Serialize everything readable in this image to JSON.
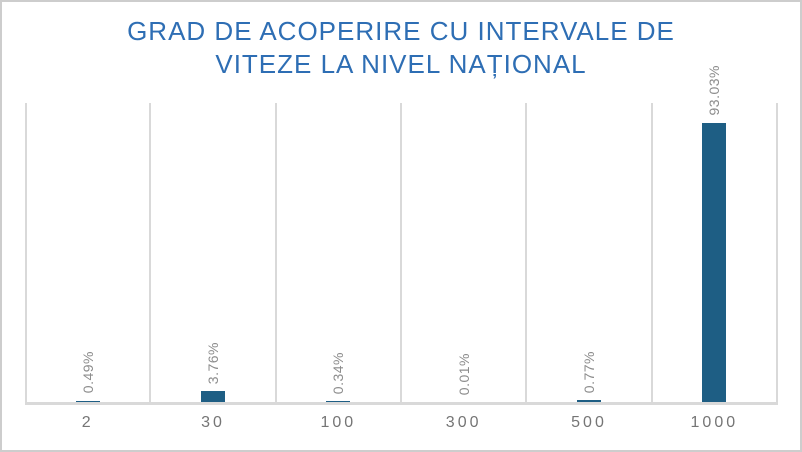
{
  "window": {
    "background_color": "#FFFFFF",
    "border_color": "#CDCDCD"
  },
  "chart_data": {
    "type": "bar",
    "title": "GRAD DE ACOPERIRE CU INTERVALE DE VITEZE LA NIVEL NAȚIONAL",
    "title_lines": [
      "GRAD DE ACOPERIRE CU INTERVALE DE",
      "VITEZE LA NIVEL NAȚIONAL"
    ],
    "categories": [
      "2",
      "30",
      "100",
      "300",
      "500",
      "1000"
    ],
    "values": [
      0.49,
      3.76,
      0.34,
      0.01,
      0.77,
      93.03
    ],
    "data_labels": [
      "0.49%",
      "3.76%",
      "0.34%",
      "0.01%",
      "0.77%",
      "93.03%"
    ],
    "data_label_rotation": "vertical-bottom-to-top",
    "xlabel": "",
    "ylabel": "",
    "ylim": [
      0,
      100
    ],
    "y_axis_visible": false,
    "legend": "none",
    "grid": "vertical category separators only",
    "colors": {
      "bar": "#1E5E84",
      "title": "#2E6EB4",
      "data_label": "#8C8C8C",
      "axis_tick_label": "#757575",
      "gridline": "#D9D9D9",
      "axis_line": "#D9D9D9"
    }
  }
}
